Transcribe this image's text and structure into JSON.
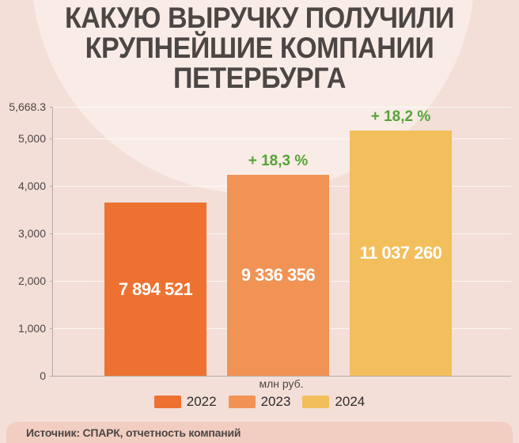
{
  "title": "КАКУЮ ВЫРУЧКУ ПОЛУЧИЛИ\nКРУПНЕЙШИЕ КОМПАНИИ\nПЕТЕРБУРГА",
  "source": "Источник: СПАРК, отчетность компаний",
  "colors": {
    "background": "#f3dfd8",
    "background_circle": "#f9ece6",
    "text_dark": "#4c4644",
    "growth_green": "#56a437",
    "source_strip": "#f2cec2",
    "bar_2022": "#ed7232",
    "bar_2023": "#f09355",
    "bar_2024": "#f3be5c"
  },
  "chart_data": {
    "type": "bar",
    "title": "КАКУЮ ВЫРУЧКУ ПОЛУЧИЛИ КРУПНЕЙШИЕ КОМПАНИИ ПЕТЕРБУРГА",
    "unit": "млн руб.",
    "categories": [
      "2022",
      "2023",
      "2024"
    ],
    "values_mln_rub": [
      7894521,
      9336356,
      11037260
    ],
    "value_labels": [
      "7 894 521",
      "9 336 356",
      "11 037 260"
    ],
    "growth_labels": [
      null,
      "+ 18,3 %",
      "+ 18,2 %"
    ],
    "bar_colors": [
      "#ed7232",
      "#f09355",
      "#f3be5c"
    ],
    "bar_axis_readings": [
      3650,
      4233,
      5166
    ],
    "y_axis": {
      "max": 5668.3,
      "ticks": [
        5668.3,
        5000,
        4000,
        3000,
        2000,
        1000,
        0
      ],
      "tick_labels": [
        "5,668.3",
        "5,000",
        "4,000",
        "3,000",
        "2,000",
        "1,000",
        "0"
      ]
    },
    "legend": [
      "2022",
      "2023",
      "2024"
    ],
    "legend_position": "bottom",
    "grid": true
  }
}
